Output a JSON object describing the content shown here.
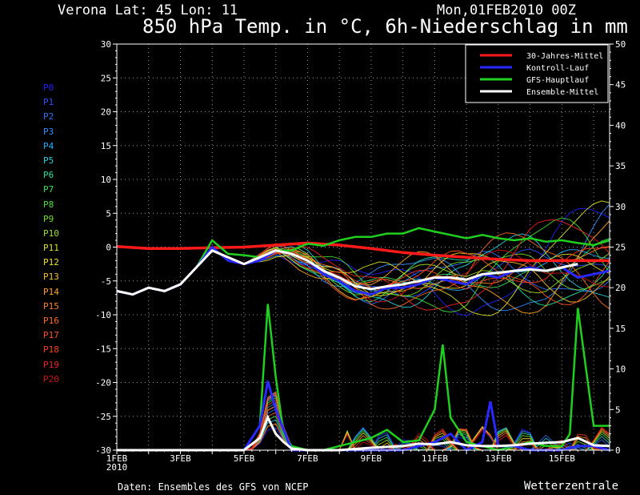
{
  "header": {
    "location": "Verona   Lat: 45 Lon: 11",
    "datetime": "Mon,01FEB2010 00Z",
    "title": "850 hPa Temp. in °C, 6h-Niederschlag in mm"
  },
  "ensemble_members": [
    {
      "label": "P0",
      "color": "#1f1fff"
    },
    {
      "label": "P1",
      "color": "#2a4fff"
    },
    {
      "label": "P2",
      "color": "#2e6fff"
    },
    {
      "label": "P3",
      "color": "#2e90ff"
    },
    {
      "label": "P4",
      "color": "#22b0ff"
    },
    {
      "label": "P5",
      "color": "#1fd0e0"
    },
    {
      "label": "P6",
      "color": "#1fe0a0"
    },
    {
      "label": "P7",
      "color": "#33e060"
    },
    {
      "label": "P8",
      "color": "#40e030"
    },
    {
      "label": "P9",
      "color": "#70e020"
    },
    {
      "label": "P10",
      "color": "#a0e020"
    },
    {
      "label": "P11",
      "color": "#d8e020"
    },
    {
      "label": "P12",
      "color": "#f0e020"
    },
    {
      "label": "P13",
      "color": "#f8c020"
    },
    {
      "label": "P14",
      "color": "#ffa020"
    },
    {
      "label": "P15",
      "color": "#ff8020"
    },
    {
      "label": "P16",
      "color": "#ff6a20"
    },
    {
      "label": "P17",
      "color": "#ff5020"
    },
    {
      "label": "P18",
      "color": "#ff3a20"
    },
    {
      "label": "P19",
      "color": "#f02020"
    },
    {
      "label": "P20",
      "color": "#d01010"
    }
  ],
  "footer": {
    "credit": "Daten: Ensembles des GFS von NCEP",
    "brand": "Wetterzentrale"
  },
  "chart_data": {
    "type": "line",
    "x_tick_labels": [
      "1FEB\n2010",
      "3FEB",
      "5FEB",
      "7FEB",
      "9FEB",
      "11FEB",
      "13FEB",
      "15FEB"
    ],
    "x_tick_days": [
      1,
      3,
      5,
      7,
      9,
      11,
      13,
      15
    ],
    "xlim": [
      1,
      16.5
    ],
    "y_left": {
      "lim": [
        -30,
        30
      ],
      "ticks": [
        30,
        25,
        20,
        15,
        10,
        5,
        0,
        -5,
        -10,
        -15,
        -20,
        -25,
        -30
      ]
    },
    "y_right": {
      "lim": [
        0,
        50
      ],
      "ticks": [
        50,
        45,
        40,
        35,
        30,
        25,
        20,
        15,
        10,
        5,
        0
      ]
    },
    "grid": true,
    "legend_position": "top-right",
    "legend": [
      {
        "name": "30-Jahres-Mittel",
        "color": "#ff1a1a"
      },
      {
        "name": "Kontroll-Lauf",
        "color": "#2828ff"
      },
      {
        "name": "GFS-Hauptlauf",
        "color": "#1fd01f"
      },
      {
        "name": "Ensemble-Mittel",
        "color": "#ffffff"
      }
    ],
    "temperature_series": [
      {
        "name": "30-Jahres-Mittel",
        "axis": "left",
        "color": "#ff1a1a",
        "x": [
          1,
          2,
          3,
          4,
          5,
          6,
          7,
          8,
          9,
          10,
          11,
          12,
          13,
          14,
          15,
          16,
          16.5
        ],
        "y": [
          0.1,
          -0.2,
          -0.2,
          -0.1,
          0.0,
          0.3,
          0.6,
          0.3,
          -0.2,
          -0.8,
          -1.2,
          -1.5,
          -1.8,
          -2.0,
          -2.0,
          -2.0,
          -2.0
        ]
      },
      {
        "name": "GFS-Hauptlauf",
        "axis": "left",
        "color": "#1fd01f",
        "x": [
          1,
          1.5,
          2,
          2.5,
          3,
          3.5,
          4,
          4.5,
          5,
          5.5,
          6,
          6.5,
          7,
          7.5,
          8,
          8.5,
          9,
          9.5,
          10,
          10.5,
          11,
          11.5,
          12,
          12.5,
          13,
          13.5,
          14,
          14.5,
          15,
          15.5,
          16,
          16.5
        ],
        "y": [
          -6.5,
          -7,
          -6,
          -6.5,
          -5.5,
          -3,
          1,
          -1,
          -1.2,
          -1.5,
          -0.5,
          -0.5,
          0.5,
          0.2,
          1,
          1.5,
          1.5,
          2,
          2,
          2.8,
          2.3,
          1.8,
          1.3,
          1.8,
          1.3,
          1.0,
          1.3,
          0.8,
          1.0,
          0.6,
          0.3,
          1.0
        ]
      },
      {
        "name": "Kontroll-Lauf",
        "axis": "left",
        "color": "#2828ff",
        "x": [
          1,
          1.5,
          2,
          2.5,
          3,
          3.5,
          4,
          4.5,
          5,
          5.5,
          6,
          6.5,
          7,
          7.5,
          8,
          8.5,
          9,
          9.5,
          10,
          10.5,
          11,
          11.5,
          12,
          12.5,
          13,
          13.5,
          14,
          14.5,
          15,
          15.5,
          16,
          16.5
        ],
        "y": [
          -6.5,
          -7,
          -6,
          -6.5,
          -5.5,
          -3,
          0,
          -2,
          -2.5,
          -2,
          -0.5,
          -1,
          -2,
          -4,
          -5,
          -6.5,
          -7,
          -6,
          -6,
          -5.5,
          -4.5,
          -5,
          -5.5,
          -4,
          -4.5,
          -3.5,
          -3,
          -3.5,
          -3,
          -4.5,
          -4,
          -3.5
        ]
      },
      {
        "name": "Ensemble-Mittel",
        "axis": "left",
        "color": "#ffffff",
        "x": [
          1,
          1.5,
          2,
          2.5,
          3,
          3.5,
          4,
          4.5,
          5,
          5.5,
          6,
          6.5,
          7,
          7.5,
          8,
          8.5,
          9,
          9.5,
          10,
          10.5,
          11,
          11.5,
          12,
          12.5,
          13,
          13.5,
          14,
          14.5,
          15,
          15.5
        ],
        "y": [
          -6.5,
          -7,
          -6,
          -6.5,
          -5.5,
          -3,
          -0.5,
          -1.5,
          -2.5,
          -1.5,
          -0.5,
          -1,
          -2,
          -3.5,
          -4.5,
          -5.8,
          -6.2,
          -5.8,
          -5.5,
          -5,
          -4.5,
          -4.5,
          -4.8,
          -4,
          -3.8,
          -3.5,
          -3.3,
          -3.5,
          -3.0,
          -2.5
        ]
      }
    ],
    "precipitation_series": [
      {
        "name": "GFS-Hauptlauf",
        "axis": "right",
        "color": "#1fd01f",
        "x": [
          1,
          4.5,
          5,
          5.5,
          5.75,
          6,
          6.25,
          6.5,
          7,
          7.5,
          8,
          9,
          9.5,
          10,
          10.5,
          11,
          11.25,
          11.5,
          12,
          12.5,
          13,
          13.5,
          14,
          14.5,
          15,
          15.25,
          15.5,
          16,
          16.5
        ],
        "y": [
          0,
          0,
          0,
          3,
          18,
          9,
          2,
          0.5,
          0,
          0,
          0.5,
          1.5,
          2.5,
          1,
          1.2,
          5,
          13,
          4,
          1,
          0.5,
          0,
          0.5,
          1,
          0.5,
          0.5,
          2,
          17.5,
          3,
          3
        ]
      },
      {
        "name": "Kontroll-Lauf",
        "axis": "right",
        "color": "#2828ff",
        "x": [
          1,
          4.5,
          5,
          5.5,
          5.75,
          6,
          6.5,
          7,
          8,
          9,
          10,
          11,
          11.5,
          12,
          12.5,
          12.75,
          13,
          13.5,
          14,
          15,
          15.5,
          16,
          16.5
        ],
        "y": [
          0,
          0,
          0,
          3,
          8.5,
          5,
          0,
          0,
          0,
          0,
          0,
          1,
          2,
          0,
          1,
          6,
          0.5,
          0.5,
          0,
          0,
          0.5,
          0.5,
          0
        ]
      },
      {
        "name": "Ensemble-Mittel",
        "axis": "right",
        "color": "#ffffff",
        "x": [
          1,
          4.5,
          5,
          5.5,
          5.75,
          6,
          6.25,
          6.5,
          7,
          8,
          9,
          10,
          10.5,
          11,
          11.5,
          12,
          12.5,
          13,
          13.5,
          14,
          14.5,
          15,
          15.5,
          16,
          16.5
        ],
        "y": [
          0,
          0,
          0,
          1.5,
          4,
          2,
          1,
          0.2,
          0,
          0,
          0.3,
          0.5,
          0.8,
          0.7,
          1.0,
          0.6,
          0.5,
          0.5,
          0.6,
          0.8,
          0.9,
          1.0,
          1.5,
          0.6,
          0.5
        ]
      }
    ]
  }
}
